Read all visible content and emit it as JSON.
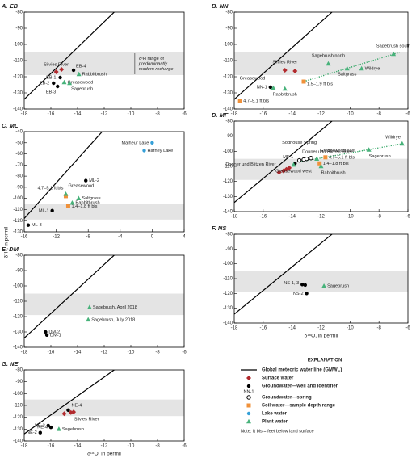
{
  "ylabel": "δ²H, in permil",
  "gmwl": {
    "name": "Global meteoric water line (GMWL)",
    "slope": 8,
    "intercept": 10,
    "color": "#000000"
  },
  "legend": {
    "title": "EXPLANATION",
    "note": "Note: ft bls = feet below land surface",
    "items": [
      {
        "name": "Surface water",
        "marker": "diamond",
        "color": "#b22a2e"
      },
      {
        "name": "Groundwater—well and identifier",
        "marker": "dot",
        "color": "#000000",
        "sample_label": "NN-1"
      },
      {
        "name": "Groundwater—spring",
        "marker": "ring",
        "color": "#000000"
      },
      {
        "name": "Soil water—sample depth range",
        "marker": "square",
        "color": "#f0913a"
      },
      {
        "name": "Lake water",
        "marker": "dot",
        "color": "#35a0d8"
      },
      {
        "name": "Plant water",
        "marker": "triangle",
        "color": "#47b27a"
      }
    ]
  },
  "chart_data": [
    {
      "type": "scatter",
      "title": "A. EB",
      "xlim": [
        -18,
        -6
      ],
      "ylim": [
        -140,
        -80
      ],
      "xticks": [
        -18,
        -16,
        -14,
        -12,
        -10,
        -8,
        -6
      ],
      "yticks": [
        -80,
        -90,
        -100,
        -110,
        -120,
        -130,
        -140
      ],
      "band": [
        -119,
        -105
      ],
      "annotation": [
        "δ²H range of",
        "predominantly",
        "modern recharge"
      ],
      "series": [
        {
          "x": [
            -15.6,
            -15.2
          ],
          "y": [
            -117,
            -115.5
          ],
          "labels": [
            "Silvies River",
            null
          ]
        },
        {
          "x": [
            -14.3,
            -15.3,
            -15.8,
            -15.5
          ],
          "y": [
            -116,
            -120.5,
            -124,
            -126
          ],
          "labels": [
            "EB-4",
            "EB-1",
            "EB-2",
            "EB-3"
          ]
        },
        {
          "x": [],
          "y": [],
          "labels": []
        },
        {
          "x": [],
          "y": [],
          "labels": []
        },
        {
          "x": [],
          "y": [],
          "labels": []
        },
        {
          "x": [
            -15,
            -13.9,
            -14.6
          ],
          "y": [
            -123.5,
            -118.5,
            -124
          ],
          "labels": [
            "Greasewood",
            "Rabbitbrush",
            "Sagebrush"
          ]
        }
      ]
    },
    {
      "type": "scatter",
      "title": "B. NN",
      "xlim": [
        -18,
        -6
      ],
      "ylim": [
        -140,
        -80
      ],
      "xticks": [
        -18,
        -16,
        -14,
        -12,
        -10,
        -8,
        -6
      ],
      "yticks": [
        -80,
        -90,
        -100,
        -110,
        -120,
        -130,
        -140
      ],
      "band": [
        -119,
        -105
      ],
      "trend": {
        "x": [
          -13.2,
          -6.6
        ],
        "y": [
          -123,
          -105
        ]
      },
      "series": [
        {
          "x": [
            -14.5,
            -13.8
          ],
          "y": [
            -116,
            -116.5
          ],
          "labels": [
            "Silvies River",
            null
          ]
        },
        {
          "x": [
            -15.5
          ],
          "y": [
            -126.5
          ],
          "labels": [
            "NN-1"
          ]
        },
        {
          "x": [],
          "y": [],
          "labels": []
        },
        {
          "x": [
            -13.2,
            -17.6
          ],
          "y": [
            -123,
            -135
          ],
          "labels": [
            "1.5–1.9 ft bls",
            "4.7–5.1 ft bls"
          ]
        },
        {
          "x": [],
          "y": [],
          "labels": []
        },
        {
          "x": [
            -15.3,
            -14.5,
            -11.5,
            -10.2,
            -9.2,
            -7
          ],
          "y": [
            -127,
            -127.5,
            -112,
            -115,
            -115,
            -106
          ],
          "labels": [
            "Greasewood",
            "Rabbitbrush",
            "Sagebrush north",
            "Saltgrass",
            "Wildrye",
            "Sagebrush south"
          ]
        }
      ]
    },
    {
      "type": "scatter",
      "title": "C. ML",
      "xlim": [
        -16,
        4
      ],
      "ylim": [
        -130,
        -40
      ],
      "xticks": [
        -16,
        -12,
        -8,
        -4,
        0,
        4
      ],
      "yticks": [
        -40,
        -50,
        -60,
        -70,
        -80,
        -90,
        -100,
        -110,
        -120,
        -130
      ],
      "band": [
        -119,
        -105
      ],
      "series": [
        {
          "x": [],
          "y": [],
          "labels": []
        },
        {
          "x": [
            -8.3,
            -12.5,
            -15.5
          ],
          "y": [
            -84,
            -111,
            -124
          ],
          "labels": [
            "ML-2",
            "ML-1",
            "ML-3"
          ]
        },
        {
          "x": [],
          "y": [],
          "labels": []
        },
        {
          "x": [
            -10.8,
            -10.5
          ],
          "y": [
            -98,
            -107
          ],
          "labels": [
            "4.7–5.1 ft bls",
            "1.4–1.8 ft bls"
          ]
        },
        {
          "x": [
            0,
            -1
          ],
          "y": [
            -50,
            -57
          ],
          "labels": [
            "Malheur Lake",
            "Harney Lake"
          ]
        },
        {
          "x": [
            -10.8,
            -9.2,
            -10
          ],
          "y": [
            -96,
            -100,
            -104
          ],
          "labels": [
            "Greasewood",
            "Saltgrass",
            "Rabbitbrush"
          ]
        }
      ]
    },
    {
      "type": "scatter",
      "title": "D. MF",
      "xlim": [
        -18,
        -6
      ],
      "ylim": [
        -140,
        -80
      ],
      "xticks": [
        -18,
        -16,
        -14,
        -12,
        -10,
        -8,
        -6
      ],
      "yticks": [
        -80,
        -90,
        -100,
        -110,
        -120,
        -130,
        -140
      ],
      "band": [
        -119,
        -105
      ],
      "trend": {
        "x": [
          -13.5,
          -6.4
        ],
        "y": [
          -107,
          -95
        ]
      },
      "series": [
        {
          "x": [
            -14.9,
            -14.6,
            -14.4,
            -14.2
          ],
          "y": [
            -114,
            -113,
            -112,
            -111
          ],
          "labels": [
            "Donner und Blitzen River",
            null,
            null,
            "Donner und Blitzen River"
          ]
        },
        {
          "x": [
            -13.8
          ],
          "y": [
            -108
          ],
          "labels": [
            "MF-1"
          ]
        },
        {
          "x": [
            -13.5,
            -13.2,
            -13,
            -12.7
          ],
          "y": [
            -106,
            -105.5,
            -105,
            -104.5
          ],
          "labels": [
            "Sodhouse Spring",
            null,
            null,
            null
          ]
        },
        {
          "x": [
            -11.7,
            -12.1
          ],
          "y": [
            -104,
            -108
          ],
          "labels": [
            "4.7–5.1 ft bls",
            "1.4–1.8 ft bls"
          ]
        },
        {
          "x": [],
          "y": [],
          "labels": []
        },
        {
          "x": [
            -13.9,
            -12.3,
            -12,
            -8.7,
            -6.4
          ],
          "y": [
            -109,
            -105,
            -110,
            -99,
            -95
          ],
          "labels": [
            "Greasewood west",
            "Greasewood east",
            "Rabbitbrush",
            "Sagebrush",
            "Wildrye"
          ]
        }
      ]
    },
    {
      "type": "scatter",
      "title": "E. DM",
      "xlim": [
        -18,
        -6
      ],
      "ylim": [
        -140,
        -80
      ],
      "xticks": [
        -18,
        -16,
        -14,
        -12,
        -10,
        -8,
        -6
      ],
      "yticks": [
        -80,
        -90,
        -100,
        -110,
        -120,
        -130,
        -140
      ],
      "band": [
        -119,
        -105
      ],
      "series": [
        {
          "x": [],
          "y": [],
          "labels": []
        },
        {
          "x": [
            -16.4,
            -16.3
          ],
          "y": [
            -130,
            -132
          ],
          "labels": [
            "DM-2",
            "DM-1"
          ]
        },
        {
          "x": [],
          "y": [],
          "labels": []
        },
        {
          "x": [],
          "y": [],
          "labels": []
        },
        {
          "x": [],
          "y": [],
          "labels": []
        },
        {
          "x": [
            -13.1,
            -13.2
          ],
          "y": [
            -114,
            -122
          ],
          "labels": [
            "Sagebrush, April 2018",
            "Sagebrush, July 2018"
          ]
        }
      ]
    },
    {
      "type": "scatter",
      "title": "F. NS",
      "xlabel": "δ¹⁸O, in permil",
      "xlim": [
        -18,
        -6
      ],
      "ylim": [
        -140,
        -80
      ],
      "xticks": [
        -18,
        -16,
        -14,
        -12,
        -10,
        -8,
        -6
      ],
      "yticks": [
        -80,
        -90,
        -100,
        -110,
        -120,
        -130,
        -140
      ],
      "band": [
        -119,
        -105
      ],
      "series": [
        {
          "x": [],
          "y": [],
          "labels": []
        },
        {
          "x": [
            -13.3,
            -13.1,
            -13
          ],
          "y": [
            -114,
            -114.3,
            -120
          ],
          "labels": [
            "NS-1, 3",
            null,
            "NS-2"
          ]
        },
        {
          "x": [],
          "y": [],
          "labels": []
        },
        {
          "x": [],
          "y": [],
          "labels": []
        },
        {
          "x": [],
          "y": [],
          "labels": []
        },
        {
          "x": [
            -11.8
          ],
          "y": [
            -115
          ],
          "labels": [
            "Sagebrush"
          ]
        }
      ]
    },
    {
      "type": "scatter",
      "title": "G. NE",
      "xlabel": "δ¹⁸O, in permil",
      "xlim": [
        -18,
        -6
      ],
      "ylim": [
        -140,
        -80
      ],
      "xticks": [
        -18,
        -16,
        -14,
        -12,
        -10,
        -8,
        -6
      ],
      "yticks": [
        -80,
        -90,
        -100,
        -110,
        -120,
        -130,
        -140
      ],
      "band": [
        -119,
        -105
      ],
      "series": [
        {
          "x": [
            -14.5,
            -14.3,
            -15
          ],
          "y": [
            -116,
            -115.5,
            -117
          ],
          "labels": [
            "Silvies River",
            null,
            null
          ]
        },
        {
          "x": [
            -14.7,
            -16.2,
            -16,
            -16.8
          ],
          "y": [
            -114,
            -127,
            -128.5,
            -133
          ],
          "labels": [
            "NE-4",
            "NE-3",
            "NE-4",
            "NE-2"
          ]
        },
        {
          "x": [],
          "y": [],
          "labels": []
        },
        {
          "x": [],
          "y": [],
          "labels": []
        },
        {
          "x": [],
          "y": [],
          "labels": []
        },
        {
          "x": [
            -15.4
          ],
          "y": [
            -130
          ],
          "labels": [
            "Sagebrush"
          ]
        }
      ]
    }
  ]
}
